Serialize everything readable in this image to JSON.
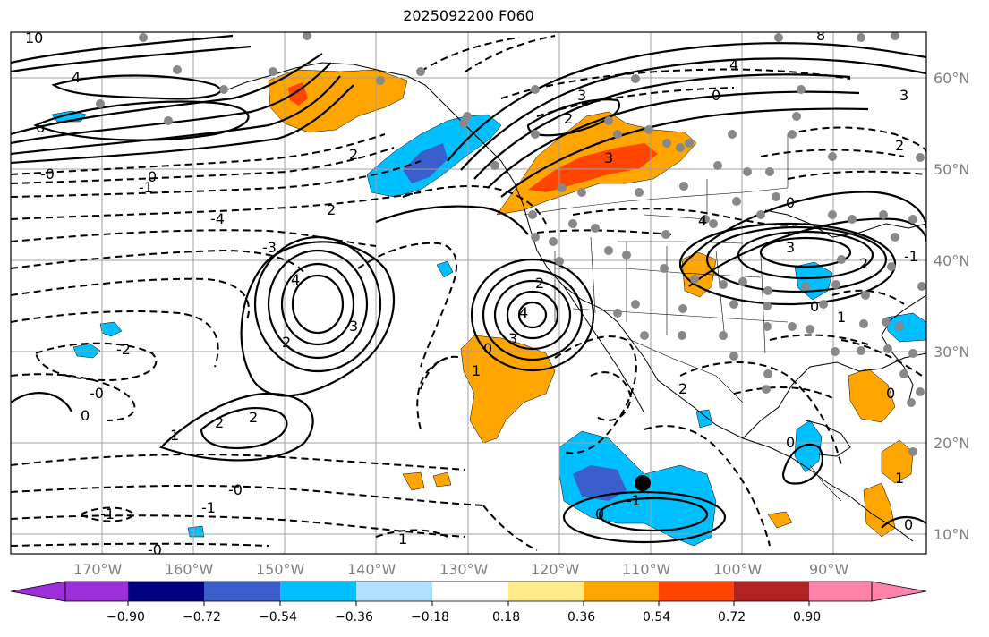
{
  "title": "2025092200 F060",
  "map": {
    "lon_labels": [
      "170°W",
      "160°W",
      "150°W",
      "140°W",
      "130°W",
      "120°W",
      "110°W",
      "100°W",
      "90°W"
    ],
    "lat_labels": [
      "60°N",
      "50°N",
      "40°N",
      "30°N",
      "20°N",
      "10°N"
    ],
    "contour_labels": [
      "-0",
      "-1",
      "-2",
      "-3",
      "-4",
      "0",
      "1",
      "2",
      "3",
      "4",
      "6",
      "10",
      "8",
      "-6"
    ],
    "stations_marker": "grey-dot",
    "storm_marker": "black-dot"
  },
  "colorbar": {
    "colors": [
      "#9b30d9",
      "#000080",
      "#3a5fcd",
      "#00bfff",
      "#b0e2ff",
      "#ffffff",
      "#ffec8b",
      "#ffa500",
      "#ff4500",
      "#b22222",
      "#ff82ab"
    ],
    "ticks": [
      "−0.90",
      "−0.72",
      "−0.54",
      "−0.36",
      "−0.18",
      "0.18",
      "0.36",
      "0.54",
      "0.72",
      "0.90"
    ]
  }
}
